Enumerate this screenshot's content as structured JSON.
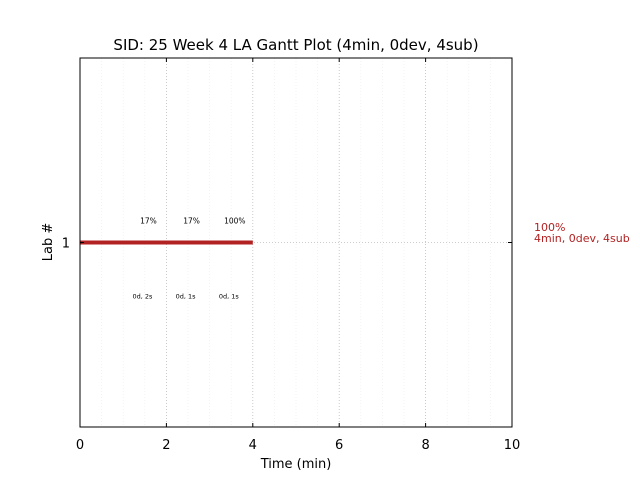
{
  "chart_data": {
    "type": "gantt",
    "title": "SID: 25 Week 4 LA Gantt Plot (4min, 0dev, 4sub)",
    "xlabel": "Time (min)",
    "ylabel": "Lab #",
    "xlim": [
      0,
      10
    ],
    "x_ticks": [
      0,
      2,
      4,
      6,
      8,
      10
    ],
    "x_tick_labels": [
      "0",
      "2",
      "4",
      "6",
      "8",
      "10"
    ],
    "minor_x_step": 0.5,
    "y_ticks": [
      1
    ],
    "y_tick_labels": [
      "1"
    ],
    "grid": true,
    "bar": {
      "lab": 1,
      "start": 0,
      "end": 4,
      "color": "#b22222"
    },
    "submissions": [
      {
        "time": 2,
        "percent_label": "17%",
        "detail_label": "0d, 2s"
      },
      {
        "time": 3,
        "percent_label": "17%",
        "detail_label": "0d, 1s"
      },
      {
        "time": 4,
        "percent_label": "100%",
        "detail_label": "0d, 1s"
      }
    ],
    "summary": {
      "line1": "100%",
      "line2": "4min, 0dev, 4sub",
      "color": "#b22222"
    }
  }
}
